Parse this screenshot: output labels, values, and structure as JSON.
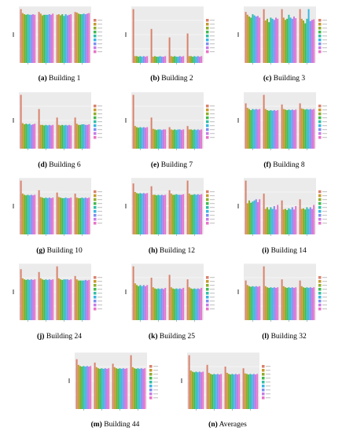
{
  "legend_colors": [
    "#d9826c",
    "#c79a2e",
    "#8fae2a",
    "#3fba4e",
    "#2fbfa5",
    "#38b6e3",
    "#7c8ff0",
    "#c77ae8",
    "#e872c8"
  ],
  "chart_data": [
    {
      "id": "b1",
      "type": "bar",
      "caption_letter": "(a)",
      "caption_text": "Building 1",
      "categories": [
        "1",
        "2",
        "3",
        "4"
      ],
      "series_values": [
        [
          0.95,
          0.9,
          0.85,
          0.9
        ],
        [
          0.88,
          0.87,
          0.86,
          0.89
        ],
        [
          0.86,
          0.84,
          0.84,
          0.87
        ],
        [
          0.85,
          0.85,
          0.86,
          0.86
        ],
        [
          0.86,
          0.85,
          0.83,
          0.86
        ],
        [
          0.85,
          0.85,
          0.86,
          0.87
        ],
        [
          0.85,
          0.86,
          0.84,
          0.86
        ],
        [
          0.86,
          0.85,
          0.85,
          0.87
        ],
        [
          0.85,
          0.87,
          0.86,
          0.88
        ]
      ]
    },
    {
      "id": "b2",
      "type": "bar",
      "caption_letter": "(b)",
      "caption_text": "Building 2",
      "categories": [
        "1",
        "2",
        "3",
        "4"
      ],
      "series_values": [
        [
          0.95,
          0.6,
          0.45,
          0.52
        ],
        [
          0.12,
          0.11,
          0.12,
          0.12
        ],
        [
          0.12,
          0.12,
          0.11,
          0.12
        ],
        [
          0.11,
          0.11,
          0.12,
          0.11
        ],
        [
          0.12,
          0.11,
          0.11,
          0.12
        ],
        [
          0.11,
          0.12,
          0.11,
          0.11
        ],
        [
          0.12,
          0.11,
          0.12,
          0.12
        ],
        [
          0.11,
          0.11,
          0.11,
          0.11
        ],
        [
          0.12,
          0.12,
          0.12,
          0.12
        ]
      ]
    },
    {
      "id": "b3",
      "type": "bar",
      "caption_letter": "(c)",
      "caption_text": "Building 3",
      "categories": [
        "1",
        "2",
        "3",
        "4"
      ],
      "series_values": [
        [
          0.9,
          0.95,
          0.95,
          0.95
        ],
        [
          0.85,
          0.75,
          0.8,
          0.78
        ],
        [
          0.82,
          0.78,
          0.76,
          0.75
        ],
        [
          0.8,
          0.72,
          0.78,
          0.7
        ],
        [
          0.86,
          0.8,
          0.85,
          0.78
        ],
        [
          0.84,
          0.78,
          0.8,
          0.95
        ],
        [
          0.82,
          0.76,
          0.78,
          0.74
        ],
        [
          0.83,
          0.8,
          0.82,
          0.76
        ],
        [
          0.8,
          0.78,
          0.79,
          0.77
        ]
      ]
    },
    {
      "id": "b6",
      "type": "bar",
      "caption_letter": "(d)",
      "caption_text": "Building 6",
      "categories": [
        "1",
        "2",
        "3",
        "4"
      ],
      "series_values": [
        [
          0.95,
          0.7,
          0.55,
          0.55
        ],
        [
          0.45,
          0.42,
          0.42,
          0.44
        ],
        [
          0.43,
          0.42,
          0.41,
          0.42
        ],
        [
          0.44,
          0.41,
          0.42,
          0.42
        ],
        [
          0.43,
          0.42,
          0.41,
          0.43
        ],
        [
          0.44,
          0.41,
          0.42,
          0.43
        ],
        [
          0.42,
          0.42,
          0.41,
          0.42
        ],
        [
          0.43,
          0.41,
          0.42,
          0.42
        ],
        [
          0.44,
          0.42,
          0.41,
          0.43
        ]
      ]
    },
    {
      "id": "b7",
      "type": "bar",
      "caption_letter": "(e)",
      "caption_text": "Building 7",
      "categories": [
        "1",
        "2",
        "3",
        "4"
      ],
      "series_values": [
        [
          0.95,
          0.55,
          0.38,
          0.4
        ],
        [
          0.4,
          0.35,
          0.34,
          0.34
        ],
        [
          0.38,
          0.34,
          0.33,
          0.34
        ],
        [
          0.37,
          0.33,
          0.34,
          0.33
        ],
        [
          0.38,
          0.34,
          0.33,
          0.34
        ],
        [
          0.37,
          0.34,
          0.34,
          0.33
        ],
        [
          0.38,
          0.33,
          0.34,
          0.34
        ],
        [
          0.37,
          0.34,
          0.33,
          0.33
        ],
        [
          0.38,
          0.34,
          0.34,
          0.34
        ]
      ]
    },
    {
      "id": "b8",
      "type": "bar",
      "caption_letter": "(f)",
      "caption_text": "Building 8",
      "categories": [
        "1",
        "2",
        "3",
        "4"
      ],
      "series_values": [
        [
          0.8,
          0.95,
          0.78,
          0.8
        ],
        [
          0.72,
          0.7,
          0.7,
          0.71
        ],
        [
          0.7,
          0.68,
          0.69,
          0.7
        ],
        [
          0.68,
          0.67,
          0.68,
          0.69
        ],
        [
          0.7,
          0.68,
          0.69,
          0.7
        ],
        [
          0.69,
          0.67,
          0.68,
          0.69
        ],
        [
          0.7,
          0.68,
          0.69,
          0.7
        ],
        [
          0.69,
          0.67,
          0.68,
          0.69
        ],
        [
          0.7,
          0.68,
          0.69,
          0.7
        ]
      ]
    },
    {
      "id": "b10",
      "type": "bar",
      "caption_letter": "(g)",
      "caption_text": "Building 10",
      "categories": [
        "1",
        "2",
        "3",
        "4"
      ],
      "series_values": [
        [
          0.95,
          0.78,
          0.74,
          0.72
        ],
        [
          0.72,
          0.66,
          0.66,
          0.65
        ],
        [
          0.7,
          0.65,
          0.65,
          0.64
        ],
        [
          0.69,
          0.64,
          0.64,
          0.64
        ],
        [
          0.7,
          0.65,
          0.64,
          0.65
        ],
        [
          0.69,
          0.64,
          0.65,
          0.64
        ],
        [
          0.7,
          0.65,
          0.64,
          0.65
        ],
        [
          0.69,
          0.64,
          0.64,
          0.64
        ],
        [
          0.7,
          0.65,
          0.65,
          0.65
        ]
      ]
    },
    {
      "id": "b12",
      "type": "bar",
      "caption_letter": "(h)",
      "caption_text": "Building 12",
      "categories": [
        "1",
        "2",
        "3",
        "4"
      ],
      "series_values": [
        [
          0.9,
          0.85,
          0.78,
          0.95
        ],
        [
          0.75,
          0.7,
          0.72,
          0.72
        ],
        [
          0.73,
          0.7,
          0.7,
          0.7
        ],
        [
          0.72,
          0.69,
          0.7,
          0.7
        ],
        [
          0.73,
          0.7,
          0.71,
          0.71
        ],
        [
          0.72,
          0.69,
          0.7,
          0.7
        ],
        [
          0.73,
          0.7,
          0.7,
          0.71
        ],
        [
          0.72,
          0.69,
          0.7,
          0.7
        ],
        [
          0.73,
          0.7,
          0.71,
          0.71
        ]
      ]
    },
    {
      "id": "b14",
      "type": "bar",
      "caption_letter": "(i)",
      "caption_text": "Building 14",
      "categories": [
        "1",
        "2",
        "3",
        "4"
      ],
      "series_values": [
        [
          0.95,
          0.72,
          0.6,
          0.62
        ],
        [
          0.55,
          0.45,
          0.44,
          0.45
        ],
        [
          0.6,
          0.48,
          0.45,
          0.46
        ],
        [
          0.56,
          0.44,
          0.43,
          0.44
        ],
        [
          0.58,
          0.48,
          0.46,
          0.48
        ],
        [
          0.6,
          0.45,
          0.44,
          0.45
        ],
        [
          0.62,
          0.5,
          0.48,
          0.48
        ],
        [
          0.57,
          0.44,
          0.44,
          0.45
        ],
        [
          0.62,
          0.52,
          0.5,
          0.52
        ]
      ]
    },
    {
      "id": "b24",
      "type": "bar",
      "caption_letter": "(j)",
      "caption_text": "Building 24",
      "categories": [
        "1",
        "2",
        "3",
        "4"
      ],
      "series_values": [
        [
          0.9,
          0.85,
          0.95,
          0.78
        ],
        [
          0.74,
          0.74,
          0.74,
          0.72
        ],
        [
          0.72,
          0.72,
          0.72,
          0.7
        ],
        [
          0.71,
          0.71,
          0.71,
          0.7
        ],
        [
          0.72,
          0.72,
          0.72,
          0.7
        ],
        [
          0.71,
          0.71,
          0.72,
          0.7
        ],
        [
          0.72,
          0.72,
          0.72,
          0.71
        ],
        [
          0.71,
          0.71,
          0.71,
          0.7
        ],
        [
          0.72,
          0.72,
          0.72,
          0.71
        ]
      ]
    },
    {
      "id": "b25",
      "type": "bar",
      "caption_letter": "(k)",
      "caption_text": "Building 25",
      "categories": [
        "1",
        "2",
        "3",
        "4"
      ],
      "series_values": [
        [
          0.95,
          0.75,
          0.8,
          0.72
        ],
        [
          0.65,
          0.58,
          0.58,
          0.58
        ],
        [
          0.62,
          0.56,
          0.56,
          0.56
        ],
        [
          0.6,
          0.55,
          0.55,
          0.55
        ],
        [
          0.62,
          0.56,
          0.56,
          0.56
        ],
        [
          0.6,
          0.55,
          0.55,
          0.55
        ],
        [
          0.62,
          0.56,
          0.56,
          0.56
        ],
        [
          0.6,
          0.55,
          0.55,
          0.55
        ],
        [
          0.62,
          0.57,
          0.57,
          0.57
        ]
      ]
    },
    {
      "id": "b32",
      "type": "bar",
      "caption_letter": "(l)",
      "caption_text": "Building 32",
      "categories": [
        "1",
        "2",
        "3",
        "4"
      ],
      "series_values": [
        [
          0.7,
          0.95,
          0.72,
          0.7
        ],
        [
          0.62,
          0.6,
          0.6,
          0.6
        ],
        [
          0.6,
          0.58,
          0.58,
          0.58
        ],
        [
          0.59,
          0.57,
          0.57,
          0.57
        ],
        [
          0.6,
          0.58,
          0.58,
          0.58
        ],
        [
          0.59,
          0.57,
          0.57,
          0.57
        ],
        [
          0.6,
          0.58,
          0.58,
          0.58
        ],
        [
          0.59,
          0.57,
          0.57,
          0.57
        ],
        [
          0.6,
          0.58,
          0.58,
          0.58
        ]
      ]
    },
    {
      "id": "b44",
      "type": "bar",
      "caption_letter": "(m)",
      "caption_text": "Building 44",
      "categories": [
        "1",
        "2",
        "3",
        "4"
      ],
      "series_values": [
        [
          0.88,
          0.82,
          0.8,
          0.95
        ],
        [
          0.78,
          0.74,
          0.74,
          0.74
        ],
        [
          0.76,
          0.72,
          0.72,
          0.72
        ],
        [
          0.75,
          0.71,
          0.71,
          0.71
        ],
        [
          0.76,
          0.72,
          0.72,
          0.72
        ],
        [
          0.75,
          0.71,
          0.71,
          0.71
        ],
        [
          0.76,
          0.72,
          0.72,
          0.72
        ],
        [
          0.75,
          0.71,
          0.71,
          0.71
        ],
        [
          0.76,
          0.72,
          0.72,
          0.72
        ]
      ]
    },
    {
      "id": "avg",
      "type": "bar",
      "caption_letter": "(n)",
      "caption_text": "Averages",
      "categories": [
        "1",
        "2",
        "3",
        "4"
      ],
      "series_values": [
        [
          0.95,
          0.78,
          0.75,
          0.72
        ],
        [
          0.68,
          0.64,
          0.64,
          0.63
        ],
        [
          0.66,
          0.62,
          0.62,
          0.62
        ],
        [
          0.65,
          0.61,
          0.61,
          0.61
        ],
        [
          0.66,
          0.62,
          0.62,
          0.62
        ],
        [
          0.65,
          0.61,
          0.61,
          0.61
        ],
        [
          0.66,
          0.62,
          0.62,
          0.62
        ],
        [
          0.65,
          0.61,
          0.61,
          0.61
        ],
        [
          0.66,
          0.62,
          0.62,
          0.62
        ]
      ]
    }
  ]
}
